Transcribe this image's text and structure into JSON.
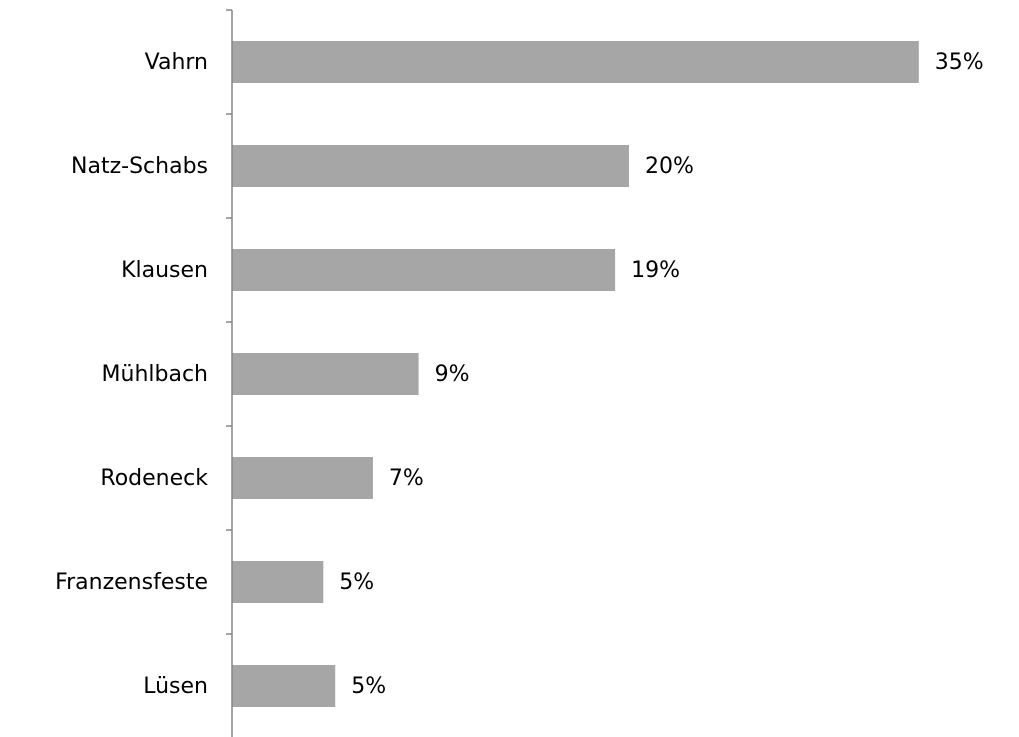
{
  "chart_data": {
    "type": "barh",
    "categories": [
      "Vahrn",
      "Natz-Schabs",
      "Klausen",
      "Mühlbach",
      "Rodeneck",
      "Franzensfeste",
      "Lüsen"
    ],
    "values": [
      34.6,
      20.0,
      19.3,
      9.4,
      7.1,
      4.6,
      5.2
    ],
    "value_labels": [
      "35%",
      "20%",
      "19%",
      "9%",
      "7%",
      "5%",
      "5%"
    ],
    "color": "#a6a6a6"
  }
}
